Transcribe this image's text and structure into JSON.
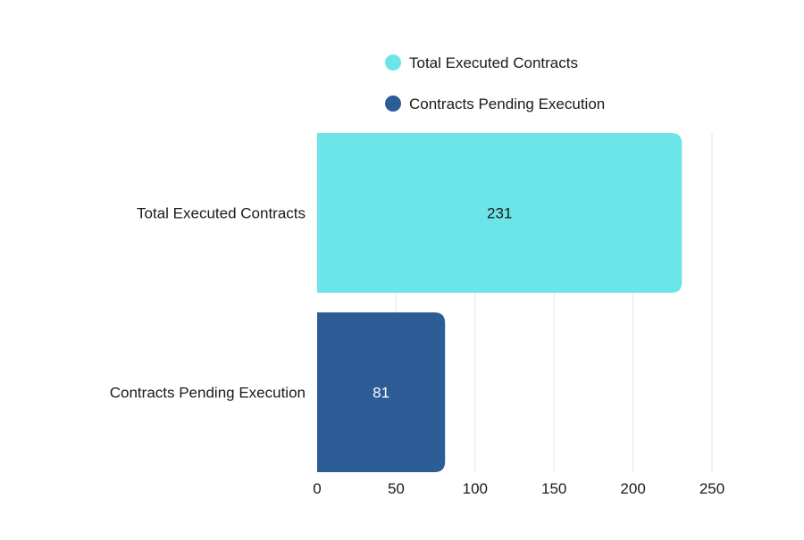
{
  "chart_data": {
    "type": "bar",
    "orientation": "horizontal",
    "title": "",
    "xlabel": "",
    "ylabel": "",
    "categories": [
      "Total Executed Contracts",
      "Contracts Pending Execution"
    ],
    "values": [
      231,
      81
    ],
    "data_labels": [
      "231",
      "81"
    ],
    "colors": [
      "#6be5e8",
      "#2d5d96"
    ],
    "label_colors": [
      "#1a1a1a",
      "#ffffff"
    ],
    "xlim": [
      0,
      250
    ],
    "xticks": [
      0,
      50,
      100,
      150,
      200,
      250
    ],
    "xtick_labels": [
      "0",
      "50",
      "100",
      "150",
      "200",
      "250"
    ],
    "grid": true,
    "legend": {
      "placement": "top",
      "entries": [
        "Total Executed Contracts",
        "Contracts Pending Execution"
      ]
    }
  }
}
